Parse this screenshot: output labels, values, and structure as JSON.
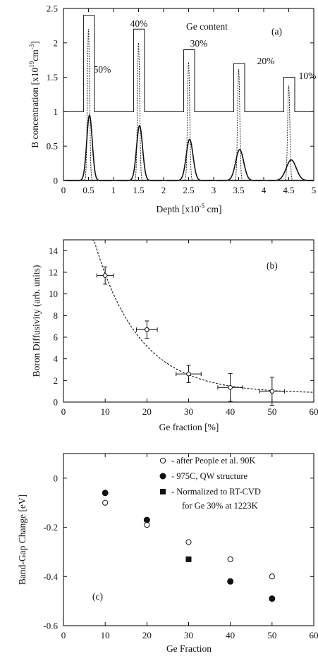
{
  "chart_data": [
    {
      "type": "line",
      "panel_label": "(a)",
      "xlabel_main": "Depth [x10",
      "xlabel_exp": "-5",
      "xlabel_unit": " cm]",
      "ylabel_main": "B concentration [x10",
      "ylabel_exp1": "19",
      "ylabel_mid": "cm",
      "ylabel_exp2": "-3",
      "ylabel_end": "]",
      "annotation": "Ge content",
      "xlim": [
        0,
        5
      ],
      "ylim": [
        0,
        2.5
      ],
      "xticks": [
        "0",
        "0.5",
        "1",
        "1.5",
        "2",
        "2.5",
        "3",
        "3.5",
        "4",
        "4.5",
        "5"
      ],
      "yticks": [
        "0",
        "0.5",
        "1",
        "1.5",
        "2",
        "2.5"
      ],
      "ge_profile": {
        "baseline": 1.0,
        "layers": [
          {
            "label": "50%",
            "x_start": 0.4,
            "x_end": 0.62,
            "height": 2.4
          },
          {
            "label": "40%",
            "x_start": 1.4,
            "x_end": 1.62,
            "height": 2.2
          },
          {
            "label": "30%",
            "x_start": 2.4,
            "x_end": 2.62,
            "height": 1.9
          },
          {
            "label": "20%",
            "x_start": 3.4,
            "x_end": 3.62,
            "height": 1.7
          },
          {
            "label": "10%",
            "x_start": 4.4,
            "x_end": 4.62,
            "height": 1.5
          }
        ]
      },
      "boron_initial": [
        {
          "center": 0.5,
          "peak": 2.2
        },
        {
          "center": 1.5,
          "peak": 2.0
        },
        {
          "center": 2.5,
          "peak": 1.72
        },
        {
          "center": 3.5,
          "peak": 1.62
        },
        {
          "center": 4.5,
          "peak": 1.38
        }
      ],
      "boron_diffused": [
        {
          "center": 0.52,
          "peak": 0.95
        },
        {
          "center": 1.52,
          "peak": 0.8
        },
        {
          "center": 2.52,
          "peak": 0.6
        },
        {
          "center": 3.52,
          "peak": 0.45
        },
        {
          "center": 4.55,
          "peak": 0.3
        }
      ]
    },
    {
      "type": "scatter",
      "panel_label": "(b)",
      "xlabel": "Ge fraction [%]",
      "ylabel": "Boron Diffusivity (arb. units)",
      "xlim": [
        0,
        60
      ],
      "ylim": [
        0,
        15
      ],
      "xticks": [
        "0",
        "10",
        "20",
        "30",
        "40",
        "50",
        "60"
      ],
      "yticks": [
        "0",
        "2",
        "4",
        "6",
        "8",
        "10",
        "12",
        "14"
      ],
      "points": [
        {
          "x": 10,
          "y": 11.7,
          "xerr": 2,
          "yerr": 0.8
        },
        {
          "x": 20,
          "y": 6.7,
          "xerr": 2.5,
          "yerr": 0.8
        },
        {
          "x": 30,
          "y": 2.6,
          "xerr": 3,
          "yerr": 0.8
        },
        {
          "x": 40,
          "y": 1.35,
          "xerr": 3,
          "yerr": 1.3
        },
        {
          "x": 50,
          "y": 1.0,
          "xerr": 3,
          "yerr": 1.3
        }
      ],
      "fit": {
        "style": "dashed",
        "a": 28,
        "k": 0.093,
        "c": 0.8,
        "x_from": 6,
        "x_to": 60
      }
    },
    {
      "type": "scatter",
      "panel_label": "(c)",
      "xlabel": "Ge Fraction",
      "ylabel": "Band-Gap Change [eV]",
      "xlim": [
        0,
        60
      ],
      "ylim": [
        -0.6,
        0.1
      ],
      "xticks": [
        "0",
        "10",
        "20",
        "30",
        "40",
        "50",
        "60"
      ],
      "yticks": [
        "0",
        "-0.2",
        "-0.4",
        "-0.6"
      ],
      "legend": [
        {
          "marker": "open-circle",
          "text": "- after People et al. 90K"
        },
        {
          "marker": "filled-circle",
          "text": "- 975C, QW structure"
        },
        {
          "marker": "filled-square",
          "text": "- Normalized to RT-CVD",
          "text2": "for Ge 30% at 1223K"
        }
      ],
      "series": [
        {
          "marker": "open-circle",
          "x": [
            10,
            20,
            30,
            40,
            50
          ],
          "y": [
            -0.1,
            -0.19,
            -0.26,
            -0.33,
            -0.4
          ]
        },
        {
          "marker": "filled-circle",
          "x": [
            10,
            20,
            40,
            50
          ],
          "y": [
            -0.06,
            -0.17,
            -0.42,
            -0.49
          ]
        },
        {
          "marker": "filled-square",
          "x": [
            30
          ],
          "y": [
            -0.33
          ]
        }
      ]
    }
  ]
}
